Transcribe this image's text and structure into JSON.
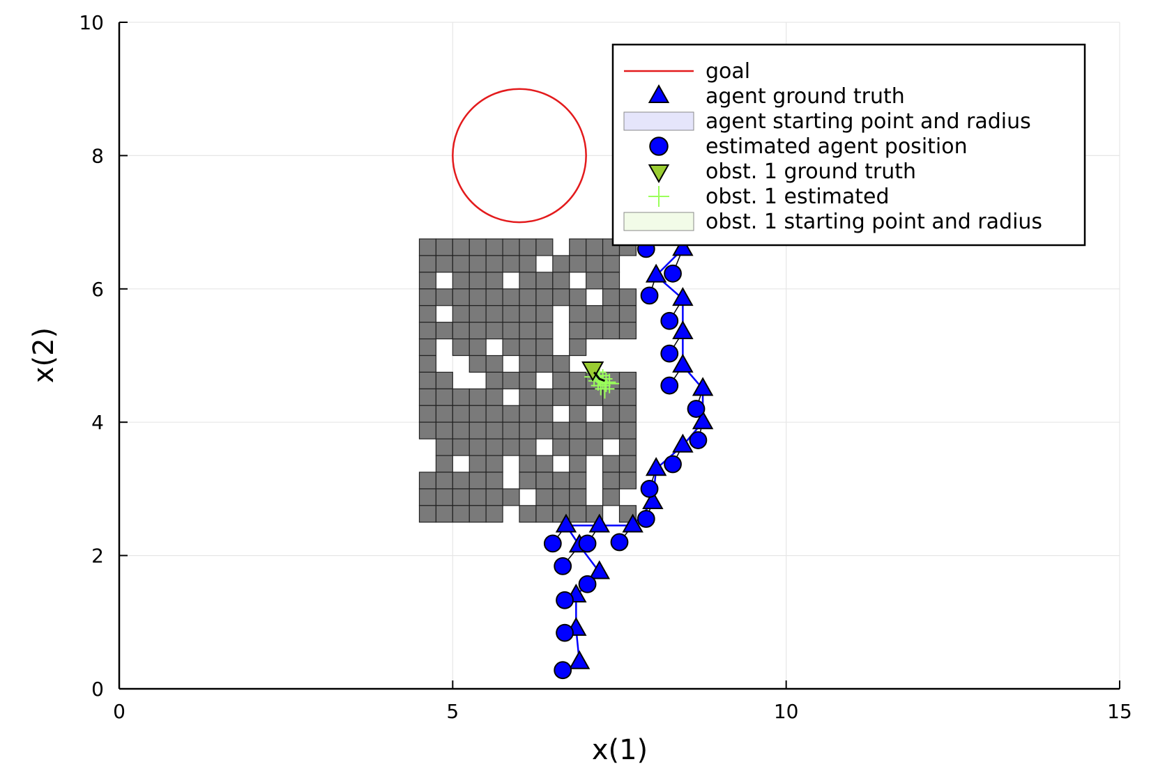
{
  "chart_data": {
    "type": "scatter",
    "title": "",
    "xlabel": "x(1)",
    "ylabel": "x(2)",
    "xlim": [
      0,
      15
    ],
    "ylim": [
      0,
      10
    ],
    "xticks": [
      0,
      5,
      10,
      15
    ],
    "yticks": [
      0,
      2,
      4,
      6,
      8,
      10
    ],
    "grid": true,
    "legend_position": "top-right",
    "legend": [
      {
        "key": "goal",
        "label": "goal",
        "marker": "line",
        "color": "#e31a1c"
      },
      {
        "key": "agent_truth",
        "label": "agent ground truth",
        "marker": "triangle-up",
        "color": "#0000ff"
      },
      {
        "key": "agent_start",
        "label": "agent starting point and radius",
        "marker": "rect",
        "color": "#e5e5fb"
      },
      {
        "key": "agent_est",
        "label": "estimated agent position",
        "marker": "circle",
        "color": "#0000ff"
      },
      {
        "key": "obs_truth",
        "label": "obst. 1 ground truth",
        "marker": "triangle-down",
        "color": "#9acd32"
      },
      {
        "key": "obs_est",
        "label": "obst. 1 estimated",
        "marker": "plus",
        "color": "#9aff5a"
      },
      {
        "key": "obs_start",
        "label": "obst. 1 starting point and radius",
        "marker": "rect",
        "color": "#f2fbe8"
      }
    ],
    "goal": {
      "center": [
        6,
        8
      ],
      "radius": 1,
      "color": "#e31a1c"
    },
    "occupancy_grid": {
      "x0": 4.5,
      "y0": 2.5,
      "cell": 0.25,
      "color": "#7a7a7a",
      "rows_top_to_bottom": [
        "1111111101111",
        "1111111011110",
        "1011101110110",
        "1111111111011",
        "1011111101111",
        "1111111101111",
        "1011011101000",
        "1001101110000",
        "1100111011111",
        "1111101111111",
        "1111111101011",
        "1111111111111",
        "0111111011101",
        "0101101101011",
        "1111101111011",
        "1111110111010",
        "1111101111101"
      ]
    },
    "series": [
      {
        "name": "agent ground truth",
        "marker": "triangle-up",
        "color": "#0000ff",
        "line_color": "#0000ff",
        "points": [
          [
            6.9,
            0.4
          ],
          [
            6.85,
            0.9
          ],
          [
            6.85,
            1.4
          ],
          [
            7.2,
            1.75
          ],
          [
            6.9,
            2.15
          ],
          [
            6.7,
            2.45
          ],
          [
            7.2,
            2.45
          ],
          [
            7.7,
            2.45
          ],
          [
            8.0,
            2.8
          ],
          [
            8.05,
            3.3
          ],
          [
            8.45,
            3.65
          ],
          [
            8.75,
            4.0
          ],
          [
            8.75,
            4.5
          ],
          [
            8.45,
            4.85
          ],
          [
            8.45,
            5.35
          ],
          [
            8.45,
            5.85
          ],
          [
            8.05,
            6.2
          ],
          [
            8.45,
            6.6
          ]
        ]
      },
      {
        "name": "estimated agent position",
        "marker": "circle",
        "color": "#0000ff",
        "points": [
          [
            6.65,
            0.28
          ],
          [
            6.68,
            0.84
          ],
          [
            6.68,
            1.33
          ],
          [
            7.02,
            1.57
          ],
          [
            6.65,
            1.84
          ],
          [
            6.5,
            2.18
          ],
          [
            7.02,
            2.18
          ],
          [
            7.5,
            2.2
          ],
          [
            7.9,
            2.55
          ],
          [
            7.95,
            3.0
          ],
          [
            8.3,
            3.37
          ],
          [
            8.68,
            3.73
          ],
          [
            8.65,
            4.2
          ],
          [
            8.25,
            4.55
          ],
          [
            8.25,
            5.03
          ],
          [
            8.25,
            5.52
          ],
          [
            7.95,
            5.9
          ],
          [
            8.3,
            6.23
          ],
          [
            7.9,
            6.6
          ]
        ]
      },
      {
        "name": "obst. 1 ground truth",
        "marker": "triangle-down",
        "color": "#9acd32",
        "points": [
          [
            7.1,
            4.8
          ]
        ]
      },
      {
        "name": "obst. 1 estimated",
        "marker": "plus",
        "color": "#9aff5a",
        "points": [
          [
            7.15,
            4.75
          ],
          [
            7.2,
            4.7
          ],
          [
            7.25,
            4.65
          ],
          [
            7.3,
            4.6
          ],
          [
            7.22,
            4.55
          ],
          [
            7.28,
            4.5
          ],
          [
            7.18,
            4.62
          ],
          [
            7.35,
            4.58
          ],
          [
            7.12,
            4.68
          ]
        ]
      }
    ]
  }
}
